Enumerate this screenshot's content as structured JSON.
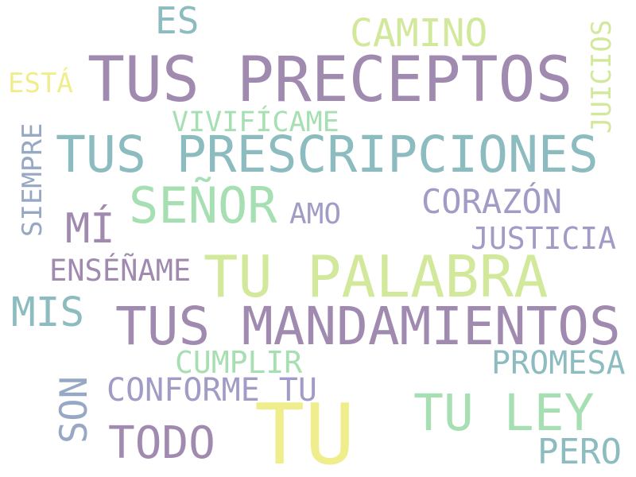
{
  "palette": {
    "purple": "#a18ab0",
    "teal": "#8cbcc0",
    "green": "#a6dfb1",
    "lime": "#d2e89a",
    "yellow": "#f0ee8c",
    "lavender": "#a09cc6",
    "slate": "#97a8c5"
  },
  "words": [
    {
      "text": "ES",
      "color": "teal",
      "vertical": false
    },
    {
      "text": "CAMINO",
      "color": "lime",
      "vertical": false
    },
    {
      "text": "JUICIOS",
      "color": "lime",
      "vertical": true
    },
    {
      "text": "ESTÁ",
      "color": "yellow",
      "vertical": false
    },
    {
      "text": "TUS PRECEPTOS",
      "color": "purple",
      "vertical": false
    },
    {
      "text": "SIEMPRE",
      "color": "slate",
      "vertical": true
    },
    {
      "text": "VIVIFÍCAME",
      "color": "green",
      "vertical": false
    },
    {
      "text": "TUS PRESCRIPCIONES",
      "color": "teal",
      "vertical": false
    },
    {
      "text": "SEÑOR",
      "color": "green",
      "vertical": false
    },
    {
      "text": "CORAZÓN",
      "color": "lavender",
      "vertical": false
    },
    {
      "text": "AMO",
      "color": "lavender",
      "vertical": false
    },
    {
      "text": "MÍ",
      "color": "purple",
      "vertical": false
    },
    {
      "text": "JUSTICIA",
      "color": "lavender",
      "vertical": false
    },
    {
      "text": "ENSÉÑAME",
      "color": "purple",
      "vertical": false
    },
    {
      "text": "TU PALABRA",
      "color": "lime",
      "vertical": false
    },
    {
      "text": "MIS",
      "color": "teal",
      "vertical": false
    },
    {
      "text": "TUS MANDAMIENTOS",
      "color": "purple",
      "vertical": false
    },
    {
      "text": "CUMPLIR",
      "color": "green",
      "vertical": false
    },
    {
      "text": "PROMESA",
      "color": "teal",
      "vertical": false
    },
    {
      "text": "SON",
      "color": "slate",
      "vertical": true
    },
    {
      "text": "CONFORME TU",
      "color": "lavender",
      "vertical": false
    },
    {
      "text": "TU LEY",
      "color": "green",
      "vertical": false
    },
    {
      "text": "TU",
      "color": "yellow",
      "vertical": false
    },
    {
      "text": "TODO",
      "color": "purple",
      "vertical": false
    },
    {
      "text": "PERO",
      "color": "teal",
      "vertical": false
    }
  ]
}
